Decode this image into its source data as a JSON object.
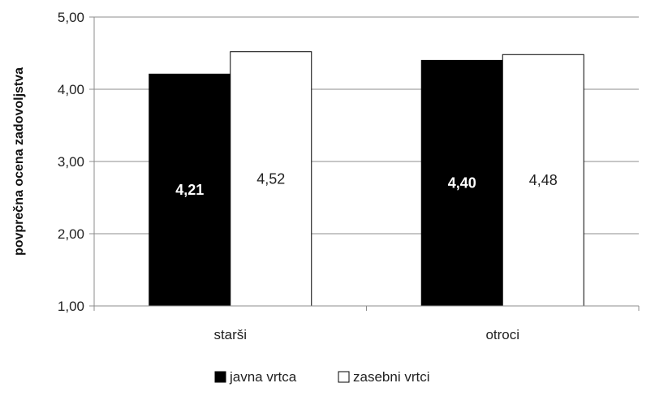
{
  "chart_data": {
    "type": "bar",
    "ylabel": "povprečna ocena zadovoljstva",
    "xlabel": "",
    "ylim": [
      1,
      5
    ],
    "yticks": [
      "1,00",
      "2,00",
      "3,00",
      "4,00",
      "5,00"
    ],
    "ytick_values": [
      1,
      2,
      3,
      4,
      5
    ],
    "grid": true,
    "legend_position": "bottom",
    "categories": [
      "starši",
      "otroci"
    ],
    "series": [
      {
        "name": "javna vrtca",
        "values": [
          4.21,
          4.4
        ],
        "labels": [
          "4,21",
          "4,40"
        ],
        "color": "#000000",
        "label_color": "#ffffff"
      },
      {
        "name": "zasebni vrtci",
        "values": [
          4.52,
          4.48
        ],
        "labels": [
          "4,52",
          "4,48"
        ],
        "color": "#ffffff",
        "label_color": "#222222"
      }
    ]
  }
}
